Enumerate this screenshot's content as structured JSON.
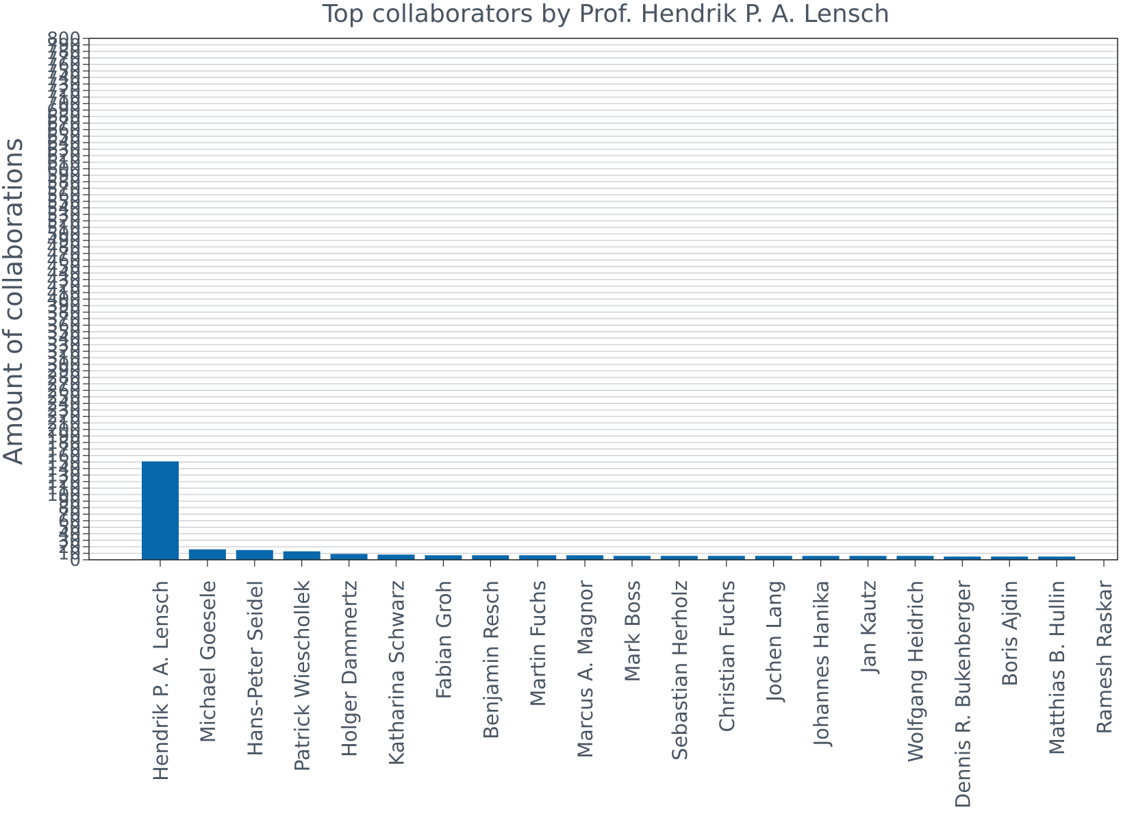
{
  "chart_data": {
    "type": "bar",
    "title": "Top collaborators by Prof. Hendrik P. A. Lensch",
    "xlabel": "",
    "ylabel": "Amount of collaborations",
    "ylim": [
      0,
      800
    ],
    "yticks": [
      0,
      10,
      20,
      30,
      40,
      50,
      60,
      70,
      80,
      90,
      100,
      110,
      120,
      130,
      140,
      150,
      160,
      170,
      180,
      190,
      200,
      210,
      220,
      230,
      240,
      250,
      260,
      270,
      280,
      290,
      300,
      310,
      320,
      330,
      340,
      350,
      360,
      370,
      380,
      390,
      400,
      410,
      420,
      430,
      440,
      450,
      460,
      470,
      480,
      490,
      500,
      510,
      520,
      530,
      540,
      550,
      560,
      570,
      580,
      590,
      600,
      610,
      620,
      630,
      640,
      650,
      660,
      670,
      680,
      690,
      700,
      710,
      720,
      730,
      740,
      750,
      760,
      770,
      780,
      790,
      800
    ],
    "grid": true,
    "bar_color": "#0868ac",
    "categories": [
      "Hendrik P. A. Lensch",
      "Michael Goesele",
      "Hans-Peter Seidel",
      "Patrick Wieschollek",
      "Holger Dammertz",
      "Katharina Schwarz",
      "Fabian Groh",
      "Benjamin Resch",
      "Martin Fuchs",
      "Marcus A. Magnor",
      "Mark Boss",
      "Sebastian Herholz",
      "Christian Fuchs",
      "Jochen Lang",
      "Johannes Hanika",
      "Jan Kautz",
      "Wolfgang Heidrich",
      "Dennis R. Bukenberger",
      "Boris Ajdin",
      "Matthias B. Hullin",
      "Ramesh Raskar"
    ],
    "values": [
      151,
      16,
      15,
      13,
      9,
      8,
      7,
      7,
      7,
      7,
      6,
      6,
      6,
      6,
      6,
      6,
      6,
      5,
      5,
      5,
      0
    ]
  }
}
